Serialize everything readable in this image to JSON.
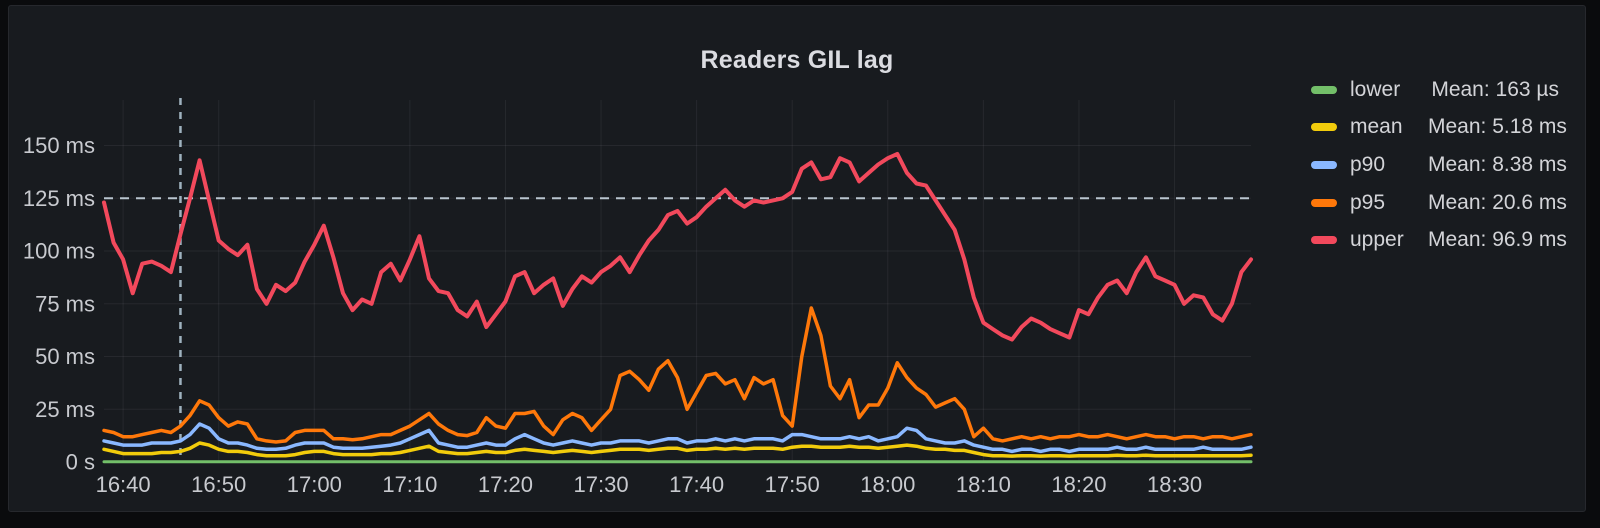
{
  "panel": {
    "title": "Readers GIL lag"
  },
  "legend": {
    "items": [
      {
        "label": "lower",
        "mean": "Mean: 163 µs",
        "color": "#73BF69"
      },
      {
        "label": "mean",
        "mean": "Mean: 5.18 ms",
        "color": "#F2CC0C"
      },
      {
        "label": "p90",
        "mean": "Mean: 8.38 ms",
        "color": "#8AB8FF"
      },
      {
        "label": "p95",
        "mean": "Mean: 20.6 ms",
        "color": "#FF780A"
      },
      {
        "label": "upper",
        "mean": "Mean: 96.9 ms",
        "color": "#F2495C"
      }
    ]
  },
  "chart_data": {
    "type": "line",
    "title": "Readers GIL lag",
    "x_axis": {
      "domain_start": "16:38",
      "domain_end": "18:38",
      "step_minutes": 1,
      "duration_minutes": 120,
      "ticks": [
        {
          "label": "16:40",
          "minute": 2
        },
        {
          "label": "16:50",
          "minute": 12
        },
        {
          "label": "17:00",
          "minute": 22
        },
        {
          "label": "17:10",
          "minute": 32
        },
        {
          "label": "17:20",
          "minute": 42
        },
        {
          "label": "17:30",
          "minute": 52
        },
        {
          "label": "17:40",
          "minute": 62
        },
        {
          "label": "17:50",
          "minute": 72
        },
        {
          "label": "18:00",
          "minute": 82
        },
        {
          "label": "18:10",
          "minute": 92
        },
        {
          "label": "18:20",
          "minute": 102
        },
        {
          "label": "18:30",
          "minute": 112
        }
      ]
    },
    "y_axis": {
      "unit": "ms",
      "min": 0,
      "max": 150,
      "ticks": [
        {
          "label": "0 s",
          "value": 0
        },
        {
          "label": "25 ms",
          "value": 25
        },
        {
          "label": "50 ms",
          "value": 50
        },
        {
          "label": "75 ms",
          "value": 75
        },
        {
          "label": "100 ms",
          "value": 100
        },
        {
          "label": "125 ms",
          "value": 125
        },
        {
          "label": "150 ms",
          "value": 150
        }
      ],
      "grid": true
    },
    "annotations": {
      "threshold": {
        "value_ms": 125,
        "style": "dashed",
        "color": "#b9c5cf"
      },
      "event_line": {
        "time": "16:46",
        "minute": 8,
        "style": "dashed",
        "color": "#9fb2bf"
      }
    },
    "legend_position": "right",
    "series": [
      {
        "name": "lower",
        "color": "#73BF69",
        "line_width": 3,
        "values": 0.16
      },
      {
        "name": "mean",
        "color": "#F2CC0C",
        "line_width": 3.5,
        "values": [
          6,
          5,
          4,
          4,
          4,
          4,
          4.5,
          4.5,
          5,
          6.5,
          9,
          8,
          6,
          5,
          5,
          4.5,
          3.5,
          3,
          3,
          3,
          3.5,
          4.5,
          5,
          5,
          4,
          3.5,
          3.5,
          3.5,
          3.5,
          4,
          4,
          4.5,
          5.5,
          6.5,
          7.5,
          5,
          4.5,
          4,
          4,
          4.5,
          5,
          4.5,
          4.5,
          5.5,
          6,
          5.5,
          5,
          4.5,
          5,
          5.5,
          5,
          4.5,
          5,
          5.5,
          6,
          6,
          6,
          5.5,
          6,
          6.5,
          6.5,
          5.5,
          6,
          6,
          6.5,
          6,
          6.5,
          6,
          6.5,
          6.5,
          6.5,
          6,
          7,
          7.5,
          7.5,
          7,
          7,
          7,
          7.5,
          7,
          7,
          6.5,
          7,
          7.5,
          8,
          7.5,
          6.5,
          6,
          6,
          5.5,
          5.5,
          4.5,
          3.5,
          3,
          3,
          2.8,
          3,
          3,
          2.8,
          3,
          3,
          2.8,
          3,
          3,
          3,
          3,
          3.2,
          3,
          3,
          3.2,
          3,
          3,
          3,
          3,
          3,
          3,
          3,
          3,
          3,
          3,
          3.2
        ]
      },
      {
        "name": "p90",
        "color": "#8AB8FF",
        "line_width": 3.5,
        "values": [
          10,
          9,
          8,
          8,
          8,
          9,
          9,
          9,
          10,
          13,
          18,
          16,
          11,
          9,
          9,
          8,
          6.5,
          6,
          6,
          6.5,
          8,
          9,
          9,
          9,
          7,
          6.5,
          6.5,
          6.5,
          7,
          7.5,
          8,
          9,
          11,
          13,
          15,
          9,
          8,
          7,
          7,
          8,
          9,
          8,
          8,
          11,
          13,
          11,
          9,
          8,
          9,
          10,
          9,
          8,
          9,
          9,
          10,
          10,
          10,
          9,
          10,
          11,
          11,
          9,
          10,
          10,
          11,
          10,
          11,
          10,
          11,
          11,
          11,
          10,
          13,
          13,
          12,
          11,
          11,
          11,
          12,
          11,
          12,
          10,
          11,
          12,
          16,
          15,
          11,
          10,
          9,
          9,
          10,
          8,
          7,
          6,
          6,
          5,
          6,
          6,
          5,
          6,
          6,
          5,
          6,
          6,
          6,
          6,
          7,
          6,
          6,
          7,
          6,
          6,
          6,
          6,
          6,
          7,
          6,
          6,
          6,
          6,
          7
        ]
      },
      {
        "name": "p95",
        "color": "#FF780A",
        "line_width": 3.5,
        "values": [
          15,
          14,
          12,
          12,
          13,
          14,
          15,
          14,
          17,
          22,
          29,
          27,
          21,
          17,
          19,
          18,
          11,
          10,
          9.5,
          10,
          14,
          15,
          15,
          15,
          11,
          11,
          10.5,
          11,
          12,
          13,
          13,
          15,
          17,
          20,
          23,
          18,
          15,
          13,
          12.5,
          14,
          21,
          17,
          16,
          23,
          23,
          24,
          17,
          13,
          20,
          23,
          21,
          15,
          20,
          25,
          41,
          43,
          39,
          34,
          44,
          48,
          40,
          25,
          33,
          41,
          42,
          37,
          39,
          30,
          40,
          37,
          39,
          22,
          17,
          50,
          73,
          60,
          36,
          30,
          39,
          21,
          27,
          27,
          35,
          47,
          40,
          35,
          32,
          26,
          28,
          30,
          25,
          12,
          16,
          11,
          10,
          11,
          12,
          11,
          12,
          11,
          12,
          12,
          13,
          12,
          12,
          13,
          12,
          11,
          12,
          13,
          12,
          12,
          11,
          12,
          12,
          11,
          12,
          12,
          11,
          12,
          13
        ]
      },
      {
        "name": "upper",
        "color": "#F2495C",
        "line_width": 4,
        "values": [
          123,
          104,
          96,
          80,
          94,
          95,
          93,
          90,
          108,
          125,
          143,
          124,
          105,
          101,
          98,
          103,
          82,
          75,
          84,
          81,
          85,
          95,
          103,
          112,
          97,
          80,
          72,
          77,
          75,
          90,
          94,
          86,
          96,
          107,
          87,
          81,
          80,
          72,
          69,
          76,
          64,
          70,
          76,
          88,
          90,
          80,
          84,
          87,
          74,
          82,
          88,
          85,
          90,
          93,
          97,
          90,
          98,
          105,
          110,
          117,
          119,
          113,
          116,
          121,
          125,
          129,
          124,
          121,
          124,
          123,
          124,
          125,
          128,
          139,
          142,
          134,
          135,
          144,
          142,
          133,
          137,
          141,
          144,
          146,
          137,
          132,
          131,
          124,
          117,
          110,
          96,
          78,
          66,
          63,
          60,
          58,
          64,
          68,
          66,
          63,
          61,
          59,
          72,
          70,
          78,
          84,
          86,
          80,
          90,
          97,
          88,
          86,
          84,
          75,
          79,
          78,
          70,
          67,
          75,
          90,
          96
        ]
      }
    ]
  }
}
